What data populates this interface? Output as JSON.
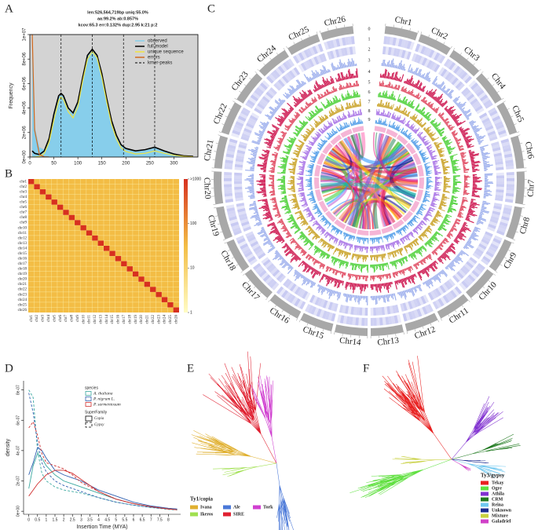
{
  "panels": [
    "A",
    "B",
    "C",
    "D",
    "E",
    "F"
  ],
  "chart_data": [
    {
      "type": "line",
      "title_lines": [
        "len:526,564,719bp uniq:55.0%",
        "aa:99.2% ab:0.857%",
        "kcov:65.3 err:0.132% dup:2.95 k:21 p:2"
      ],
      "ylabel": "Frequency",
      "x": [
        5,
        10,
        20,
        30,
        40,
        50,
        60,
        65,
        70,
        80,
        90,
        100,
        110,
        120,
        130,
        140,
        150,
        160,
        170,
        180,
        190,
        200,
        220,
        240,
        260,
        280,
        300,
        320,
        340
      ],
      "xlim": [
        0,
        350
      ],
      "ylim": [
        0,
        10000000
      ],
      "xticks": [
        0,
        50,
        100,
        150,
        200,
        250,
        300
      ],
      "yticks": [
        {
          "value": 0,
          "label": "0e+00"
        },
        {
          "value": 2000000,
          "label": "2e+06"
        },
        {
          "value": 4000000,
          "label": "4e+06"
        },
        {
          "value": 6000000,
          "label": "6e+06"
        },
        {
          "value": 8000000,
          "label": "8e+06"
        },
        {
          "value": 10000000,
          "label": "1e+07"
        }
      ],
      "background": "#d3d3d3",
      "series": [
        {
          "name": "observed",
          "color": "#87ceeb",
          "fill": true,
          "values": [
            10000000,
            2500000,
            800000,
            600000,
            1500000,
            3400000,
            4900000,
            5100000,
            4900000,
            3900000,
            3500000,
            4400000,
            6400000,
            8200000,
            8700000,
            8200000,
            6700000,
            4700000,
            2900000,
            1700000,
            950000,
            650000,
            450000,
            550000,
            750000,
            450000,
            220000,
            90000,
            40000
          ]
        },
        {
          "name": "full model",
          "color": "#000000",
          "values": [
            500000,
            300000,
            200000,
            500000,
            1500000,
            3500000,
            5000000,
            5200000,
            5000000,
            4000000,
            3600000,
            4500000,
            6500000,
            8300000,
            8800000,
            8300000,
            6800000,
            4800000,
            3000000,
            1800000,
            1000000,
            700000,
            500000,
            600000,
            800000,
            500000,
            250000,
            100000,
            50000
          ]
        },
        {
          "name": "unique sequence",
          "color": "#f0e442",
          "values": [
            0,
            0,
            50000,
            300000,
            1200000,
            3000000,
            4600000,
            4900000,
            4700000,
            3700000,
            3200000,
            4100000,
            6200000,
            8000000,
            8600000,
            8100000,
            6500000,
            4500000,
            2700000,
            1500000,
            750000,
            450000,
            250000,
            300000,
            500000,
            300000,
            150000,
            60000,
            20000
          ]
        },
        {
          "name": "errors",
          "color": "#d2691e",
          "values": [
            10000000,
            2200000,
            200000,
            20000,
            0,
            null,
            null,
            null,
            null,
            null,
            null,
            null,
            null,
            null,
            null,
            null,
            null,
            null,
            null,
            null,
            null,
            null,
            null,
            null,
            null,
            null,
            null,
            null,
            null
          ]
        }
      ],
      "kmer_peaks": {
        "name": "kmer-peaks",
        "color": "#000000",
        "values": [
          65,
          130,
          195,
          260
        ]
      }
    },
    {
      "type": "heatmap",
      "categories": [
        "chr1",
        "chr2",
        "chr3",
        "chr4",
        "chr5",
        "chr6",
        "chr7",
        "chr8",
        "chr9",
        "chr10",
        "chr11",
        "chr12",
        "chr13",
        "chr14",
        "chr15",
        "chr16",
        "chr17",
        "chr18",
        "chr19",
        "chr20",
        "chr21",
        "chr22",
        "chr23",
        "chr24",
        "chr25",
        "chr26"
      ],
      "diagonal": [
        1000,
        1000,
        1000,
        1000,
        1000,
        1000,
        1000,
        1000,
        1000,
        1000,
        1000,
        1000,
        1000,
        1000,
        1000,
        1000,
        1000,
        1000,
        1000,
        1000,
        1000,
        1000,
        1000,
        1000,
        1000,
        1000
      ],
      "colorbar_ticks": [
        1,
        10,
        100,
        {
          "value": 1000,
          "label": ">1000"
        }
      ],
      "colors": [
        "#fffcc4",
        "#f3bd45",
        "#d7301f"
      ]
    },
    {
      "type": "line",
      "xlabel": "Insertion Time (MYA)",
      "ylabel": "density",
      "x": [
        0,
        0.25,
        0.5,
        0.75,
        1,
        1.5,
        2,
        2.5,
        3,
        3.5,
        4,
        5,
        6,
        7,
        8,
        8.5
      ],
      "xlim": [
        -0.3,
        8.7
      ],
      "ylim": [
        -2e-08,
        8.6e-07
      ],
      "xticks": [
        0,
        0.5,
        1,
        1.5,
        2,
        2.5,
        3,
        3.5,
        4,
        4.5,
        5,
        5.5,
        6,
        6.5,
        7,
        7.5,
        8
      ],
      "yticks": [
        {
          "value": 0,
          "label": "0e+00"
        },
        {
          "value": 2e-07,
          "label": "2e-07"
        },
        {
          "value": 4e-07,
          "label": "4e-07"
        },
        {
          "value": 6e-07,
          "label": "6e-07"
        },
        {
          "value": 8e-07,
          "label": "8e-07"
        }
      ],
      "species_title": "species",
      "species": [
        {
          "name": "A. thaliana",
          "color": "#3aa8a0"
        },
        {
          "name": "P. nigrum L.",
          "color": "#3060b0"
        },
        {
          "name": "P. sarmentosum",
          "color": "#d03030"
        }
      ],
      "family_title": "SuperFamily",
      "families": [
        {
          "name": "Copia",
          "dash": "none"
        },
        {
          "name": "Gypsy",
          "dash": "3,2"
        }
      ],
      "series": [
        {
          "species": "A. thaliana",
          "family": "Copia",
          "values": [
            1.5e-07,
            3e-07,
            3.8e-07,
            3.5e-07,
            3e-07,
            2.4e-07,
            2e-07,
            1.8e-07,
            1.6e-07,
            1.4e-07,
            1.2e-07,
            8e-08,
            5e-08,
            3e-08,
            1.5e-08,
            1e-08
          ]
        },
        {
          "species": "A. thaliana",
          "family": "Gypsy",
          "values": [
            8e-07,
            7.5e-07,
            4e-07,
            2.5e-07,
            2e-07,
            1.6e-07,
            1.4e-07,
            1.3e-07,
            1.2e-07,
            1.05e-07,
            9e-08,
            6e-08,
            4e-08,
            2.5e-08,
            1.2e-08,
            8e-09
          ]
        },
        {
          "species": "P. nigrum L.",
          "family": "Copia",
          "values": [
            2.4e-07,
            3.2e-07,
            4.2e-07,
            4e-07,
            3.5e-07,
            2.7e-07,
            2.4e-07,
            2.2e-07,
            2e-07,
            1.7e-07,
            1.4e-07,
            1e-07,
            6e-08,
            3.5e-08,
            2e-08,
            1.5e-08
          ]
        },
        {
          "species": "P. nigrum L.",
          "family": "Gypsy",
          "values": [
            7.8e-07,
            6.5e-07,
            4.5e-07,
            3.2e-07,
            2.6e-07,
            2e-07,
            1.7e-07,
            1.5e-07,
            1.3e-07,
            1.1e-07,
            9e-08,
            6e-08,
            4e-08,
            2.5e-08,
            1.5e-08,
            1e-08
          ]
        },
        {
          "species": "P. sarmentosum",
          "family": "Copia",
          "values": [
            1e-07,
            1.4e-07,
            1.8e-07,
            2.1e-07,
            2.4e-07,
            2.7e-07,
            2.7e-07,
            2.5e-07,
            2.1e-07,
            1.7e-07,
            1.3e-07,
            8e-08,
            5e-08,
            3e-08,
            1.5e-08,
            1e-08
          ]
        },
        {
          "species": "P. sarmentosum",
          "family": "Gypsy",
          "values": [
            5.5e-07,
            5.9e-07,
            5e-07,
            3.8e-07,
            3.2e-07,
            3e-07,
            2.8e-07,
            2.4e-07,
            1.9e-07,
            1.6e-07,
            1.3e-07,
            8e-08,
            5e-08,
            3e-08,
            1.5e-08,
            1e-08
          ]
        }
      ]
    }
  ],
  "circos": {
    "chromosomes": [
      "Chr1",
      "Chr2",
      "Chr3",
      "Chr4",
      "Chr5",
      "Chr6",
      "Chr7",
      "Chr8",
      "Chr9",
      "Chr10",
      "Chr11",
      "Chr12",
      "Chr13",
      "Chr14",
      "Chr15",
      "Chr16",
      "Chr17",
      "Chr18",
      "Chr19",
      "Chr20",
      "Chr21",
      "Chr22",
      "Chr23",
      "Chr24",
      "Chr25",
      "Chr26"
    ],
    "track_labels": [
      "0",
      "1",
      "2",
      "3",
      "4",
      "5",
      "6",
      "7",
      "8",
      "9"
    ],
    "track_colors": [
      "#a8a8a8",
      "#c7c9f2",
      "#c7c9f2",
      "#a3b4ee",
      "#cf1f56",
      "#e04b62",
      "#4fd13a",
      "#c9a227",
      "#a873e6",
      "#4f9ce8",
      "#f3a3cc"
    ]
  },
  "trees": [
    {
      "legend_title": "Ty1/copia",
      "entries": [
        {
          "name": "Ivana",
          "color": "#e0b030"
        },
        {
          "name": "Ale",
          "color": "#4a78d8"
        },
        {
          "name": "Tork",
          "color": "#d040d0"
        },
        {
          "name": "Ikeros",
          "color": "#a0e050"
        },
        {
          "name": "SIRE",
          "color": "#e02030"
        }
      ]
    },
    {
      "legend_title": "Ty3/gypsy",
      "entries": [
        {
          "name": "Tekay",
          "color": "#e82020"
        },
        {
          "name": "Ogre",
          "color": "#60e040"
        },
        {
          "name": "Athila",
          "color": "#8030d0"
        },
        {
          "name": "CRM",
          "color": "#207a20"
        },
        {
          "name": "Reina",
          "color": "#70c8f0"
        },
        {
          "name": "Unknown",
          "color": "#1a2a90"
        },
        {
          "name": "Mixture",
          "color": "#c8d040"
        },
        {
          "name": "Galadriel",
          "color": "#d040c8"
        }
      ]
    }
  ]
}
